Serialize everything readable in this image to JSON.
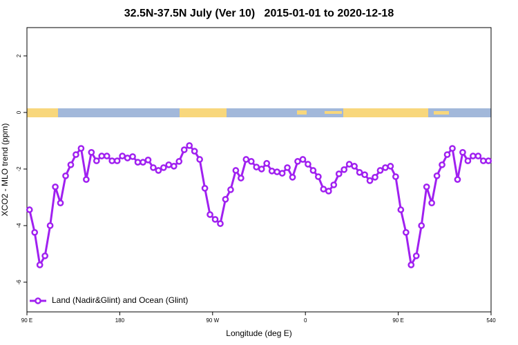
{
  "chart_data": {
    "type": "line",
    "title": "32.5N-37.5N July (Ver 10)   2015-01-01 to 2020-12-18",
    "xlabel": "Longitude (deg E)",
    "ylabel": "XCO2 - MLO trend (ppm)",
    "x": [
      92.5,
      97.5,
      102.5,
      107.5,
      112.5,
      117.5,
      122.5,
      127.5,
      132.5,
      137.5,
      142.5,
      147.5,
      152.5,
      157.5,
      162.5,
      167.5,
      172.5,
      177.5,
      182.5,
      187.5,
      192.5,
      197.5,
      202.5,
      207.5,
      212.5,
      217.5,
      222.5,
      227.5,
      232.5,
      237.5,
      242.5,
      247.5,
      252.5,
      257.5,
      262.5,
      267.5,
      272.5,
      277.5,
      282.5,
      287.5,
      292.5,
      297.5,
      302.5,
      307.5,
      312.5,
      317.5,
      322.5,
      327.5,
      332.5,
      337.5,
      342.5,
      347.5,
      352.5,
      357.5,
      362.5,
      367.5,
      372.5,
      377.5,
      382.5,
      387.5,
      392.5,
      397.5,
      402.5,
      407.5,
      412.5,
      417.5,
      422.5,
      427.5,
      432.5,
      437.5,
      442.5,
      447.5,
      452.5,
      457.5,
      462.5,
      467.5,
      472.5,
      477.5,
      482.5,
      487.5,
      492.5,
      497.5,
      502.5,
      507.5,
      512.5,
      517.5,
      522.5,
      527.5,
      532.5,
      537.5
    ],
    "series": [
      {
        "name": "Land (Nadir&Glint) and Ocean (Glint)",
        "color": "#a020f0",
        "values": [
          -3.44,
          -4.24,
          -5.39,
          -5.07,
          -4.0,
          -2.63,
          -3.2,
          -2.24,
          -1.85,
          -1.49,
          -1.27,
          -2.37,
          -1.41,
          -1.71,
          -1.54,
          -1.54,
          -1.71,
          -1.71,
          -1.54,
          -1.61,
          -1.56,
          -1.76,
          -1.76,
          -1.68,
          -1.95,
          -2.05,
          -1.95,
          -1.85,
          -1.9,
          -1.73,
          -1.32,
          -1.17,
          -1.37,
          -1.66,
          -2.68,
          -3.61,
          -3.78,
          -3.93,
          -3.07,
          -2.73,
          -2.05,
          -2.32,
          -1.66,
          -1.73,
          -1.93,
          -2.0,
          -1.8,
          -2.07,
          -2.1,
          -2.15,
          -1.95,
          -2.29,
          -1.73,
          -1.66,
          -1.83,
          -2.05,
          -2.27,
          -2.71,
          -2.78,
          -2.56,
          -2.17,
          -2.02,
          -1.83,
          -1.9,
          -2.12,
          -2.2,
          -2.41,
          -2.29,
          -2.05,
          -1.95,
          -1.9,
          -2.27,
          -3.44,
          -4.24,
          -5.39,
          -5.07,
          -4.0,
          -2.63,
          -3.2,
          -2.24,
          -1.85,
          -1.49,
          -1.27,
          -2.37,
          -1.41,
          -1.71,
          -1.54,
          -1.54,
          -1.71,
          -1.71
        ]
      }
    ],
    "xlim": [
      90,
      540
    ],
    "xticks": [
      {
        "value": 90,
        "label": "90 E"
      },
      180,
      {
        "value": 270,
        "label": "90 W"
      },
      {
        "value": 360,
        "label": "0"
      },
      {
        "value": 450,
        "label": "90 E"
      },
      540
    ],
    "ylim": [
      -7.05,
      3
    ],
    "yticks": [
      -6,
      -4,
      -2,
      0,
      2
    ],
    "legend": "bottom left"
  }
}
